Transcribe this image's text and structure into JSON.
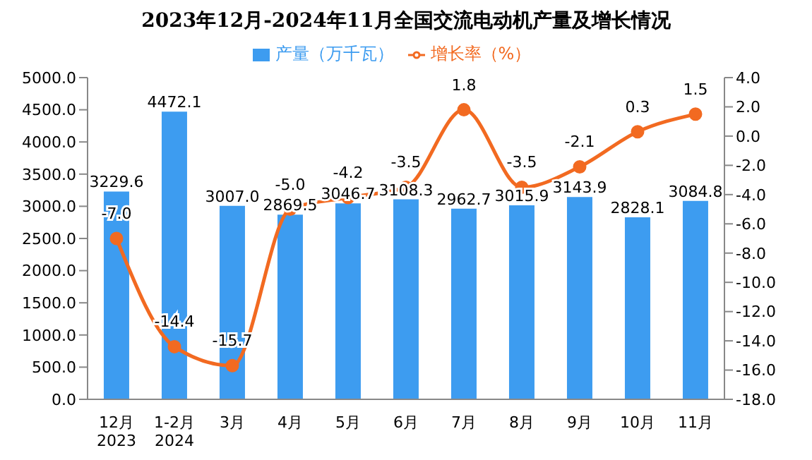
{
  "chart_data": {
    "type": "bar",
    "title": "2023年12月-2024年11月全国交流电动机产量及增长情况",
    "categories": [
      "12月\n2023",
      "1-2月\n2024",
      "3月",
      "4月",
      "5月",
      "6月",
      "7月",
      "8月",
      "9月",
      "10月",
      "11月"
    ],
    "series": [
      {
        "name": "产量（万千瓦）",
        "color": "#3d9cf0",
        "values": [
          3229.6,
          4472.1,
          3007.0,
          2869.5,
          3046.7,
          3108.3,
          2962.7,
          3015.9,
          3143.9,
          2828.1,
          3084.8
        ],
        "value_labels": [
          "3229.6",
          "4472.1",
          "3007.0",
          "2869.5",
          "3046.7",
          "3108.3",
          "2962.7",
          "3015.9",
          "3143.9",
          "2828.1",
          "3084.8"
        ]
      },
      {
        "name": "增长率（%）",
        "type": "line",
        "axis": "y2",
        "color": "#f26a21",
        "marker": "circle",
        "values": [
          -7.0,
          -14.4,
          -15.7,
          -5.0,
          -4.2,
          -3.5,
          1.8,
          -3.5,
          -2.1,
          0.3,
          1.5
        ],
        "value_labels": [
          "-7.0",
          "-14.4",
          "-15.7",
          "-5.0",
          "-4.2",
          "-3.5",
          "1.8",
          "-3.5",
          "-2.1",
          "0.3",
          "1.5"
        ]
      }
    ],
    "ylim": [
      0,
      5000
    ],
    "yticks": [
      {
        "value": 0,
        "label": "0.0"
      },
      {
        "value": 500,
        "label": "500.0"
      },
      {
        "value": 1000,
        "label": "1000.0"
      },
      {
        "value": 1500,
        "label": "1500.0"
      },
      {
        "value": 2000,
        "label": "2000.0"
      },
      {
        "value": 2500,
        "label": "2500.0"
      },
      {
        "value": 3000,
        "label": "3000.0"
      },
      {
        "value": 3500,
        "label": "3500.0"
      },
      {
        "value": 4000,
        "label": "4000.0"
      },
      {
        "value": 4500,
        "label": "4500.0"
      },
      {
        "value": 5000,
        "label": "5000.0"
      }
    ],
    "y2lim": [
      -18,
      4
    ],
    "y2ticks": [
      {
        "value": -18,
        "label": "-18.0"
      },
      {
        "value": -16,
        "label": "-16.0"
      },
      {
        "value": -14,
        "label": "-14.0"
      },
      {
        "value": -12,
        "label": "-12.0"
      },
      {
        "value": -10,
        "label": "-10.0"
      },
      {
        "value": -8,
        "label": "-8.0"
      },
      {
        "value": -6,
        "label": "-6.0"
      },
      {
        "value": -4,
        "label": "-4.0"
      },
      {
        "value": -2,
        "label": "-2.0"
      },
      {
        "value": 0,
        "label": "0.0"
      },
      {
        "value": 2,
        "label": "2.0"
      },
      {
        "value": 4,
        "label": "4.0"
      }
    ],
    "grid": false,
    "legend": "top"
  }
}
